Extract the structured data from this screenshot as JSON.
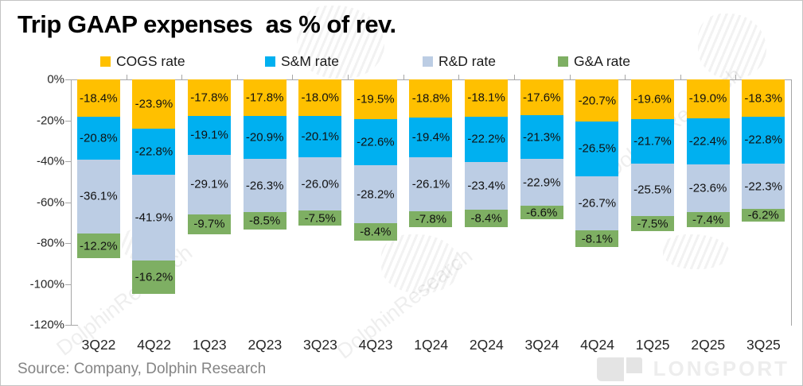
{
  "title": "Trip GAAP expenses  as % of rev.",
  "source": "Source: Company, Dolphin Research",
  "watermark": {
    "text": "DolphinResearch",
    "brand": "LONGPORT"
  },
  "colors": {
    "axis": "#a6a6a6",
    "cogs": "#FFC000",
    "sm": "#00B0F0",
    "rd": "#BCCDE4",
    "ga": "#7EAF63"
  },
  "chart_data": {
    "type": "bar",
    "stacked": true,
    "direction": "negative-down",
    "title": "Trip GAAP expenses  as % of rev.",
    "categories": [
      "3Q22",
      "4Q22",
      "1Q23",
      "2Q23",
      "3Q23",
      "4Q23",
      "1Q24",
      "2Q24",
      "3Q24",
      "4Q24",
      "1Q25",
      "2Q25",
      "3Q25"
    ],
    "series": [
      {
        "name": "COGS rate",
        "color": "#FFC000",
        "values": [
          -18.4,
          -23.9,
          -17.8,
          -17.8,
          -18.0,
          -19.5,
          -18.8,
          -18.1,
          -17.6,
          -20.7,
          -19.6,
          -19.0,
          -18.3
        ]
      },
      {
        "name": "S&M rate",
        "color": "#00B0F0",
        "values": [
          -20.8,
          -22.8,
          -19.1,
          -20.9,
          -20.1,
          -22.6,
          -19.4,
          -22.2,
          -21.3,
          -26.5,
          -21.7,
          -22.4,
          -22.8
        ]
      },
      {
        "name": "R&D rate",
        "color": "#BCCDE4",
        "values": [
          -36.1,
          -41.9,
          -29.1,
          -26.3,
          -26.0,
          -28.2,
          -26.1,
          -23.4,
          -22.9,
          -26.7,
          -25.5,
          -23.6,
          -22.3
        ]
      },
      {
        "name": "G&A rate",
        "color": "#7EAF63",
        "values": [
          -12.2,
          -16.2,
          -9.7,
          -8.5,
          -7.5,
          -8.4,
          -7.8,
          -8.4,
          -6.6,
          -8.1,
          -7.5,
          -7.4,
          -6.2
        ]
      }
    ],
    "y_tick_labels": [
      "0%",
      "-20%",
      "-40%",
      "-60%",
      "-80%",
      "-100%",
      "-120%"
    ],
    "ylim": [
      0,
      -120
    ],
    "grid": false,
    "legend_position": "top",
    "data_labels": "inside-center, one decimal, percent"
  }
}
